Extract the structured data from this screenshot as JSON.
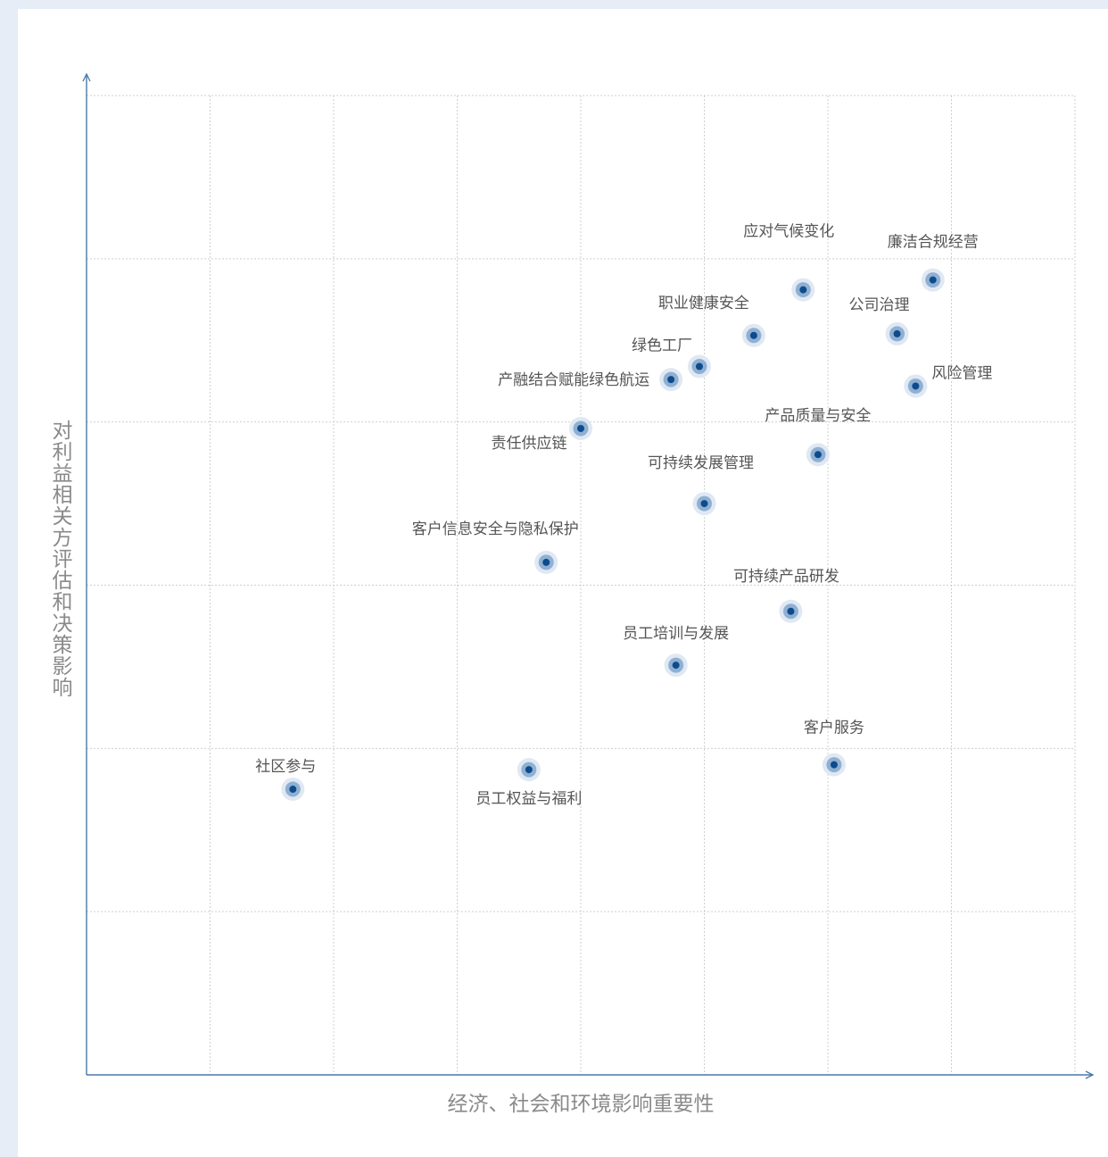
{
  "chart_data": {
    "type": "scatter",
    "title": "",
    "xlabel": "经济、社会和环境影响重要性",
    "ylabel": "对利益相关方评估和决策影响",
    "xlim": [
      0,
      8
    ],
    "ylim": [
      0,
      6
    ],
    "grid": true,
    "points": [
      {
        "label": "应对气候变化",
        "x": 5.8,
        "y": 4.81
      },
      {
        "label": "廉洁合规经营",
        "x": 6.85,
        "y": 4.87
      },
      {
        "label": "职业健康安全",
        "x": 5.4,
        "y": 4.53
      },
      {
        "label": "公司治理",
        "x": 6.56,
        "y": 4.54
      },
      {
        "label": "绿色工厂",
        "x": 4.96,
        "y": 4.34
      },
      {
        "label": "风险管理",
        "x": 6.71,
        "y": 4.22
      },
      {
        "label": "产融结合赋能绿色航运",
        "x": 4.73,
        "y": 4.26
      },
      {
        "label": "责任供应链",
        "x": 4.0,
        "y": 3.96
      },
      {
        "label": "产品质量与安全",
        "x": 5.92,
        "y": 3.8
      },
      {
        "label": "可持续发展管理",
        "x": 5.0,
        "y": 3.5
      },
      {
        "label": "客户信息安全与隐私保护",
        "x": 3.72,
        "y": 3.14
      },
      {
        "label": "可持续产品研发",
        "x": 5.7,
        "y": 2.84
      },
      {
        "label": "员工培训与发展",
        "x": 4.77,
        "y": 2.51
      },
      {
        "label": "客户服务",
        "x": 6.05,
        "y": 1.9
      },
      {
        "label": "社区参与",
        "x": 1.67,
        "y": 1.75
      },
      {
        "label": "员工权益与福利",
        "x": 3.58,
        "y": 1.87
      }
    ]
  }
}
